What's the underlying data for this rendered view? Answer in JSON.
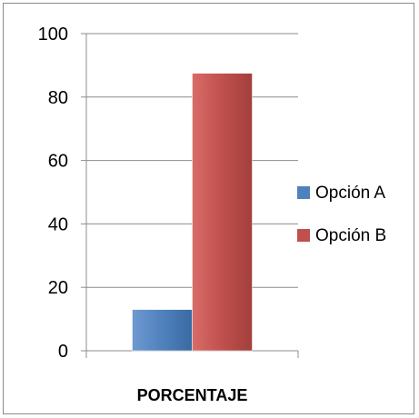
{
  "chart_data": {
    "type": "bar",
    "categories": [
      "PORCENTAJE"
    ],
    "series": [
      {
        "name": "Opción A",
        "values": [
          13
        ],
        "color": "#4f81bd"
      },
      {
        "name": "Opción B",
        "values": [
          87.5
        ],
        "color": "#c0504d"
      }
    ],
    "ylim": [
      0,
      100
    ],
    "yticks": [
      "0",
      "20",
      "40",
      "60",
      "80",
      "100"
    ],
    "grid": true,
    "legend": "right"
  }
}
